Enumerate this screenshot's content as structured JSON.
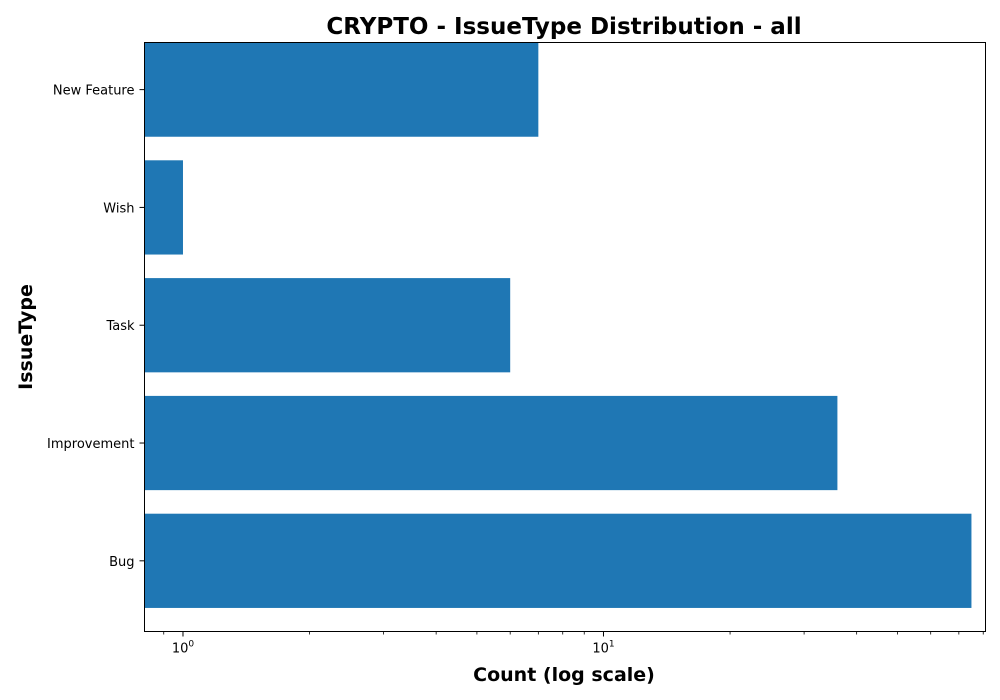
{
  "chart_data": {
    "type": "bar",
    "orientation": "horizontal",
    "title": "CRYPTO - IssueType Distribution - all",
    "xlabel": "Count (log scale)",
    "ylabel": "IssueType",
    "x_scale": "log",
    "xlim": [
      0.81,
      81
    ],
    "categories": [
      "Bug",
      "Improvement",
      "Task",
      "Wish",
      "New Feature"
    ],
    "values": [
      75,
      36,
      6,
      1,
      7
    ],
    "x_major_ticks": [
      {
        "base": "10",
        "exp": "0",
        "value": 1
      },
      {
        "base": "10",
        "exp": "1",
        "value": 10
      }
    ],
    "bar_color": "#1f77b4",
    "grid": false,
    "legend": "none"
  }
}
